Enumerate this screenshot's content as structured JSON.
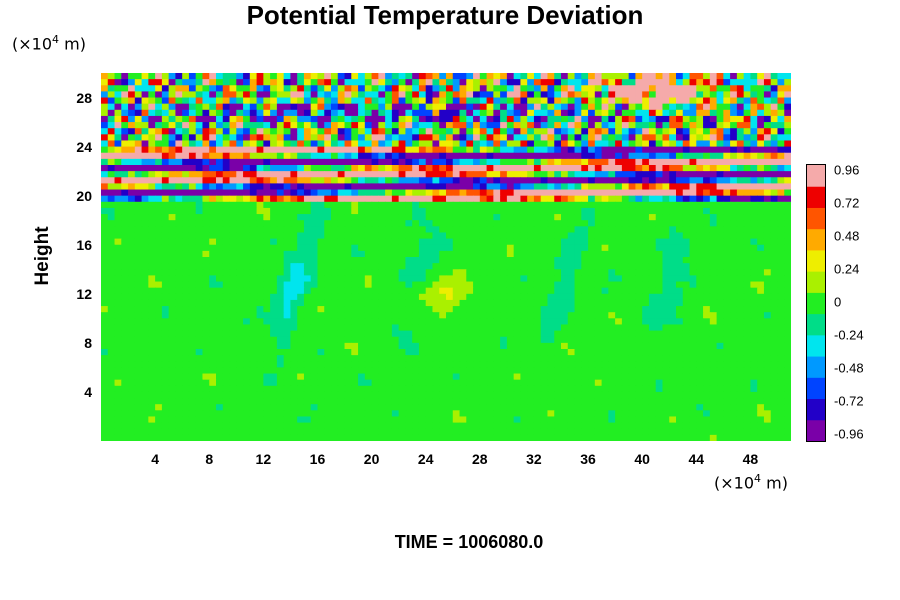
{
  "chart_data": {
    "type": "heatmap",
    "title": "Potential Temperature Deviation",
    "ylabel": "Height",
    "xlabel": "",
    "x_unit_prefix": "(×10",
    "x_unit_exp": "4",
    "x_unit_suffix": " m)",
    "y_unit_prefix": "(×10",
    "y_unit_exp": "4",
    "y_unit_suffix": " m)",
    "xlim": [
      0,
      51
    ],
    "ylim": [
      0,
      30
    ],
    "x_ticks": [
      "4",
      "8",
      "12",
      "16",
      "20",
      "24",
      "28",
      "32",
      "36",
      "40",
      "44",
      "48"
    ],
    "y_ticks": [
      "4",
      "8",
      "12",
      "16",
      "20",
      "24",
      "28"
    ],
    "colorbar_ticks": [
      "0.96",
      "0.72",
      "0.48",
      "0.24",
      "0",
      "-0.24",
      "-0.48",
      "-0.72",
      "-0.96"
    ],
    "colorbar_range": [
      -0.96,
      0.96
    ],
    "colormap": [
      "#7a00a8",
      "#2200c8",
      "#0044ff",
      "#0099ff",
      "#00e5ee",
      "#00dd88",
      "#22ee22",
      "#aaf000",
      "#eeee00",
      "#ffaa00",
      "#ff5500",
      "#ee0000",
      "#f5aaaa"
    ],
    "background_value": 0.0,
    "features": [
      {
        "region": "lower troposphere (height 0–20)",
        "value": 0.0,
        "description_level": "near zero"
      },
      {
        "region": "layered bands (height 20–24)",
        "value_range": [
          -0.96,
          0.96
        ]
      },
      {
        "region": "upper disturbed layer (height 24–30)",
        "value_range": [
          -0.96,
          0.96
        ]
      }
    ],
    "footer": "TIME = 1006080.0"
  }
}
